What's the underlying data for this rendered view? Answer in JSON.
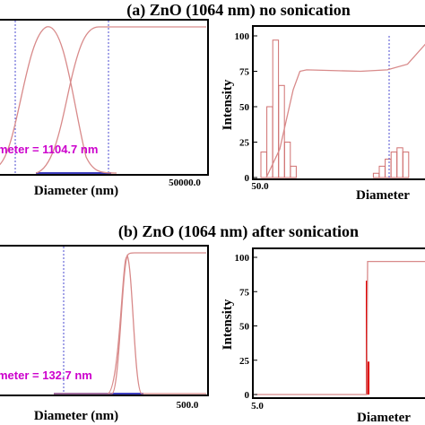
{
  "colors": {
    "curve": "#d88a8a",
    "bars": "#d07070",
    "spike": "#e00000",
    "dotted_line": "#4b4bd0",
    "annotation": "#cc00cc",
    "baseline": "#4040c0"
  },
  "panel_a": {
    "title": "(a) ZnO (1064 nm) no sonication",
    "left": {
      "annotation": "meter = 1104.7 nm",
      "xlabel": "Diameter (nm)",
      "x_tick_right": "50000.0"
    },
    "right": {
      "ylabel": "Intensity",
      "xlabel": "Diameter",
      "x_tick_left": "50.0",
      "y_ticks": [
        "0",
        "25",
        "50",
        "75",
        "100"
      ]
    }
  },
  "panel_b": {
    "title": "(b) ZnO (1064 nm) after sonication",
    "left": {
      "annotation": "meter = 132.7 nm",
      "xlabel": "Diameter (nm)",
      "x_tick_right": "500.0"
    },
    "right": {
      "ylabel": "Intensity",
      "xlabel": "Diameter",
      "x_tick_left": "5.0",
      "y_ticks": [
        "0",
        "25",
        "50",
        "75",
        "100"
      ]
    }
  },
  "chart_data": [
    {
      "type": "line",
      "title": "(a) ZnO (1064 nm) no sonication",
      "xlabel": "Diameter (nm)",
      "ylabel": "",
      "x_ticks": [
        "50000.0"
      ],
      "annotations": [
        "meter = 1104.7 nm"
      ],
      "series": [
        {
          "shape": "distribution",
          "x": [
            0,
            0.1,
            0.2,
            0.3,
            0.4,
            0.5,
            0.6
          ],
          "values": [
            0.1,
            0.7,
            0.98,
            0.8,
            0.35,
            0.05,
            0.0
          ]
        },
        {
          "shape": "cumulative",
          "x": [
            0.25,
            0.35,
            0.45,
            0.55,
            0.65,
            1.0
          ],
          "values": [
            0.02,
            0.15,
            0.55,
            0.9,
            1.0,
            1.0
          ]
        }
      ]
    },
    {
      "type": "bar",
      "title": "",
      "xlabel": "Diameter",
      "ylabel": "Intensity",
      "ylim": [
        0,
        100
      ],
      "y_ticks": [
        0,
        25,
        50,
        75,
        100
      ],
      "x_ticks": [
        "50.0"
      ],
      "bars": [
        {
          "x": 1,
          "value": 18
        },
        {
          "x": 2,
          "value": 50
        },
        {
          "x": 3,
          "value": 97
        },
        {
          "x": 4,
          "value": 65
        },
        {
          "x": 5,
          "value": 25
        },
        {
          "x": 6,
          "value": 8
        },
        {
          "x": 20,
          "value": 3
        },
        {
          "x": 21,
          "value": 8
        },
        {
          "x": 22,
          "value": 13
        },
        {
          "x": 23,
          "value": 18
        },
        {
          "x": 24,
          "value": 21
        },
        {
          "x": 25,
          "value": 18
        }
      ],
      "cumulative": {
        "x": [
          0,
          2,
          4,
          5,
          6,
          14,
          18,
          21,
          24
        ],
        "values": [
          0,
          20,
          62,
          75,
          76,
          75,
          76,
          80,
          96
        ]
      }
    },
    {
      "type": "line",
      "title": "(b) ZnO (1064 nm) after sonication",
      "xlabel": "Diameter (nm)",
      "ylabel": "",
      "x_ticks": [
        "500.0"
      ],
      "annotations": [
        "meter = 132.7 nm"
      ],
      "series": [
        {
          "shape": "distribution",
          "x": [
            0.5,
            0.6,
            0.65,
            0.68,
            0.71,
            0.75,
            0.85
          ],
          "values": [
            0,
            0.02,
            0.5,
            1.0,
            0.5,
            0.02,
            0
          ]
        },
        {
          "shape": "cumulative",
          "x": [
            0.6,
            0.64,
            0.66,
            0.7,
            0.72,
            1.0
          ],
          "values": [
            0,
            0.05,
            0.5,
            0.95,
            1.0,
            1.0
          ]
        }
      ]
    },
    {
      "type": "bar",
      "title": "",
      "xlabel": "Diameter",
      "ylabel": "Intensity",
      "ylim": [
        0,
        100
      ],
      "y_ticks": [
        0,
        25,
        50,
        75,
        100
      ],
      "x_ticks": [
        "5.0"
      ],
      "bars": [
        {
          "x": 1,
          "value": 83
        },
        {
          "x": 1.1,
          "value": 24
        }
      ],
      "cumulative": {
        "x": [
          0,
          1,
          1.05,
          1.1,
          3
        ],
        "values": [
          0,
          0,
          97,
          97,
          97
        ]
      }
    }
  ]
}
